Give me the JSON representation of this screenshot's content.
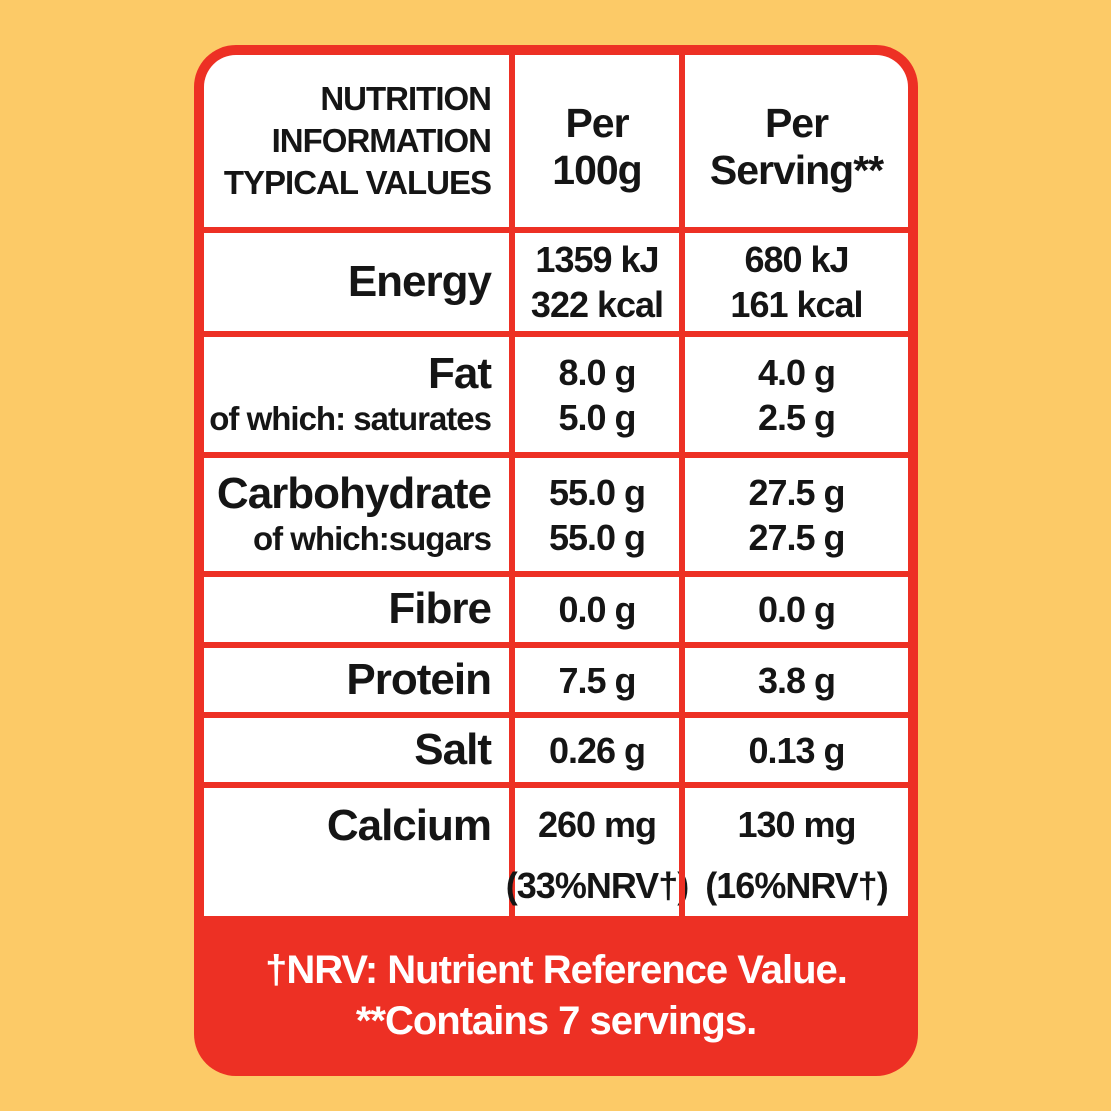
{
  "colors": {
    "background": "#FCCA67",
    "accent_red": "#ED3024",
    "panel_white": "#FFFFFF",
    "text_black": "#151515"
  },
  "header": {
    "col1_line1": "NUTRITION",
    "col1_line2": "INFORMATION",
    "col1_line3": "TYPICAL VALUES",
    "col2_line1": "Per",
    "col2_line2": "100g",
    "col3_line1": "Per",
    "col3_line2": "Serving**"
  },
  "rows": [
    {
      "label": "Energy",
      "p1": "1359 kJ",
      "p2": "322 kcal",
      "s1": "680 kJ",
      "s2": "161 kcal"
    },
    {
      "label": "Fat",
      "sub": "of which: saturates",
      "p1": "8.0 g",
      "p2": "5.0 g",
      "s1": "4.0 g",
      "s2": "2.5 g"
    },
    {
      "label": "Carbohydrate",
      "sub": "of which:sugars",
      "p1": "55.0 g",
      "p2": "55.0 g",
      "s1": "27.5 g",
      "s2": "27.5 g"
    },
    {
      "label": "Fibre",
      "p1": "0.0 g",
      "s1": "0.0 g"
    },
    {
      "label": "Protein",
      "p1": "7.5 g",
      "s1": "3.8 g"
    },
    {
      "label": "Salt",
      "p1": "0.26 g",
      "s1": "0.13 g"
    },
    {
      "label": "Calcium",
      "p1": "260 mg",
      "p2": "(33%NRV†)",
      "s1": "130 mg",
      "s2": "(16%NRV†)"
    }
  ],
  "footer": {
    "line1": "†NRV: Nutrient Reference Value.",
    "line2": "**Contains 7 servings."
  }
}
